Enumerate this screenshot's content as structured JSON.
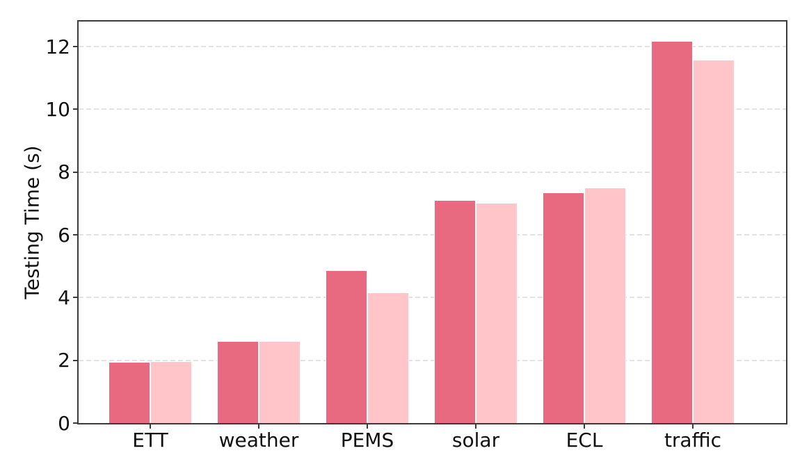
{
  "chart_data": {
    "type": "bar",
    "title": "",
    "xlabel": "",
    "ylabel": "Testing Time (s)",
    "categories": [
      "ETT",
      "weather",
      "PEMS",
      "solar",
      "ECL",
      "traffic"
    ],
    "series": [
      {
        "name": "dark-pink-bars",
        "color": "#e76a80",
        "values": [
          1.95,
          2.62,
          4.87,
          7.1,
          7.35,
          12.17
        ]
      },
      {
        "name": "light-pink-bars",
        "color": "#ffc5c8",
        "values": [
          1.98,
          2.62,
          4.17,
          7.03,
          7.51,
          11.58
        ]
      }
    ],
    "yticks": [
      0,
      2,
      4,
      6,
      8,
      10,
      12
    ],
    "ylim": [
      0,
      12.8
    ],
    "grid": "horizontal-dashed",
    "legend": "none",
    "bar_edge_color": "#ffffff",
    "spine_color": "#3a3a3a",
    "grid_color": "#e2e2e2",
    "text_color": "#111111",
    "background": "#ffffff"
  }
}
